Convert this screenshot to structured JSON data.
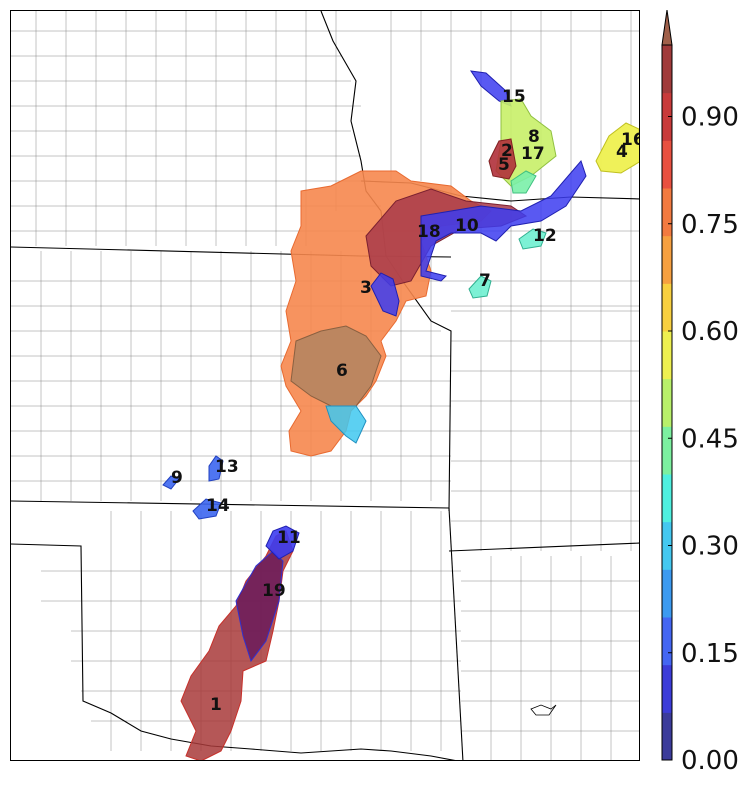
{
  "map": {
    "region_labels": [
      "1",
      "2",
      "3",
      "4",
      "5",
      "6",
      "7",
      "8",
      "9",
      "10",
      "11",
      "12",
      "13",
      "14",
      "15",
      "16",
      "17",
      "18",
      "19"
    ]
  },
  "colorbar": {
    "tick_labels": [
      "0.00",
      "0.15",
      "0.30",
      "0.45",
      "0.60",
      "0.75",
      "0.90"
    ],
    "tick_values": [
      0.0,
      0.15,
      0.3,
      0.45,
      0.6,
      0.75,
      0.9
    ],
    "range": [
      0,
      1
    ],
    "colors": [
      "#3b3b9a",
      "#3c3cd8",
      "#4466f2",
      "#3c9af0",
      "#44c8f0",
      "#4ff0e0",
      "#7cf0a0",
      "#b8f06a",
      "#eef050",
      "#f8d040",
      "#f6a040",
      "#f27a40",
      "#e85040",
      "#c83a3a",
      "#a03a3a"
    ]
  }
}
